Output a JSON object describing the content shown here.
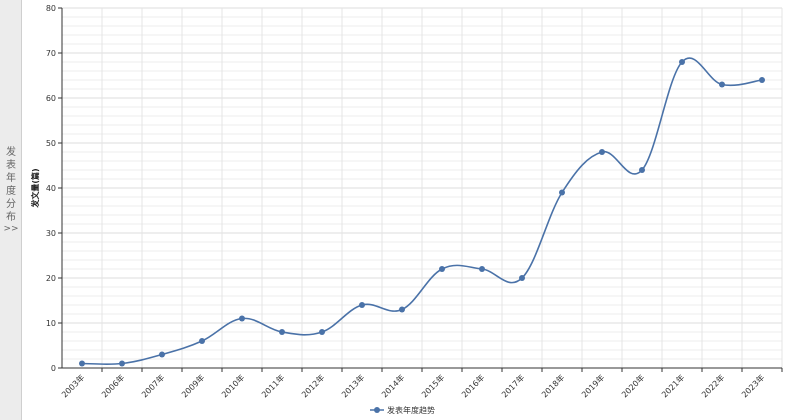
{
  "side_panel": {
    "chars": [
      "发",
      "表",
      "年",
      "度",
      "分",
      "布"
    ],
    "arrow": ">>"
  },
  "chart_data": {
    "type": "line",
    "categories": [
      "2003年",
      "2006年",
      "2007年",
      "2009年",
      "2010年",
      "2011年",
      "2012年",
      "2013年",
      "2014年",
      "2015年",
      "2016年",
      "2017年",
      "2018年",
      "2019年",
      "2020年",
      "2021年",
      "2022年",
      "2023年"
    ],
    "series": [
      {
        "name": "发表年度趋势",
        "values": [
          1,
          1,
          3,
          6,
          11,
          8,
          8,
          14,
          13,
          22,
          22,
          20,
          39,
          48,
          44,
          68,
          63,
          64
        ]
      }
    ],
    "ylabel": "发文量(篇)",
    "ylim": [
      0,
      80
    ],
    "yticks": [
      0,
      10,
      20,
      30,
      40,
      50,
      60,
      70,
      80
    ],
    "grid": true,
    "legend": "bottom-center",
    "colors": {
      "line": "#4a72a8",
      "grid": "#dcdcdc",
      "axis": "#333333"
    }
  }
}
